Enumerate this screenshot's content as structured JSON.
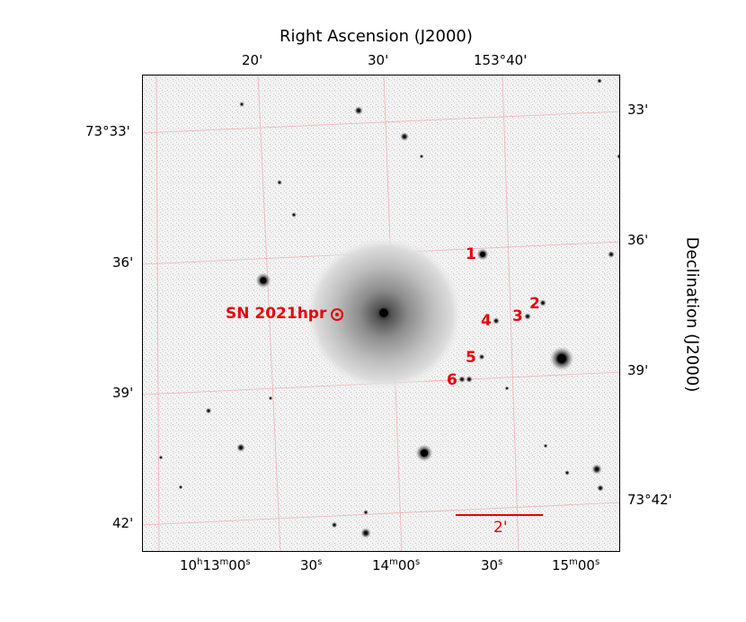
{
  "axes": {
    "top_title": "Right Ascension (J2000)",
    "right_title": "Declination (J2000)",
    "top_ticks": [
      "20'",
      "30'",
      "153°40'"
    ],
    "right_ticks": [
      "33'",
      "36'",
      "39'",
      "73°42'"
    ],
    "left_ticks": [
      "73°33'",
      "36'",
      "39'",
      "42'"
    ],
    "bottom_ticks": [
      {
        "h": "10",
        "hs": "h",
        "m": "13",
        "ms": "m",
        "s": "00",
        "ss": "s"
      },
      {
        "s": "30",
        "ss": "s"
      },
      {
        "h": "14",
        "hs": "m",
        "m": "00",
        "ms": "s"
      },
      {
        "s": "30",
        "ss": "s"
      },
      {
        "h": "15",
        "hs": "m",
        "m": "00",
        "ms": "s"
      }
    ]
  },
  "labels": {
    "supernova": "SN 2021hpr",
    "stars": [
      "1",
      "2",
      "3",
      "4",
      "5",
      "6"
    ],
    "scale_bar": "2'"
  },
  "colors": {
    "annotation": "#e8000b",
    "grid": "#f4b6b6"
  }
}
